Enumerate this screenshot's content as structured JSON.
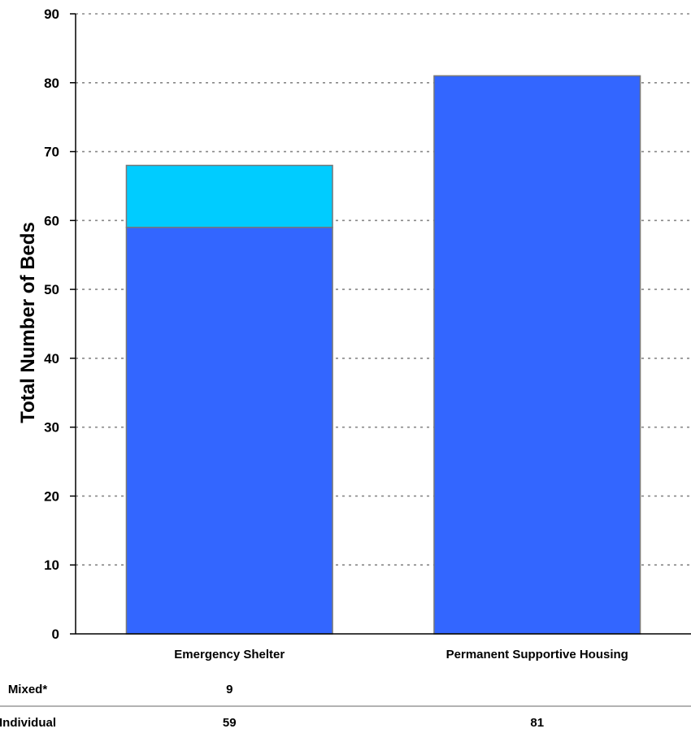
{
  "chart_data": {
    "type": "bar",
    "stacked": true,
    "title": "",
    "xlabel": "",
    "ylabel": "Total Number of Beds",
    "ylim": [
      0,
      90
    ],
    "y_ticks": [
      0,
      10,
      20,
      30,
      40,
      50,
      60,
      70,
      80,
      90
    ],
    "grid": "horizontal dashed",
    "categories": [
      "Emergency Shelter",
      "Permanent Supportive Housing"
    ],
    "series": [
      {
        "name": "Individual",
        "values": [
          59,
          81
        ],
        "color": "#3366ff"
      },
      {
        "name": "Mixed*",
        "values": [
          9,
          null
        ],
        "color": "#00ccff"
      }
    ],
    "data_table": {
      "rows": [
        {
          "label": "Mixed*",
          "cells": [
            "9",
            ""
          ]
        },
        {
          "label": "Individual",
          "cells": [
            "59",
            "81"
          ]
        }
      ]
    }
  }
}
